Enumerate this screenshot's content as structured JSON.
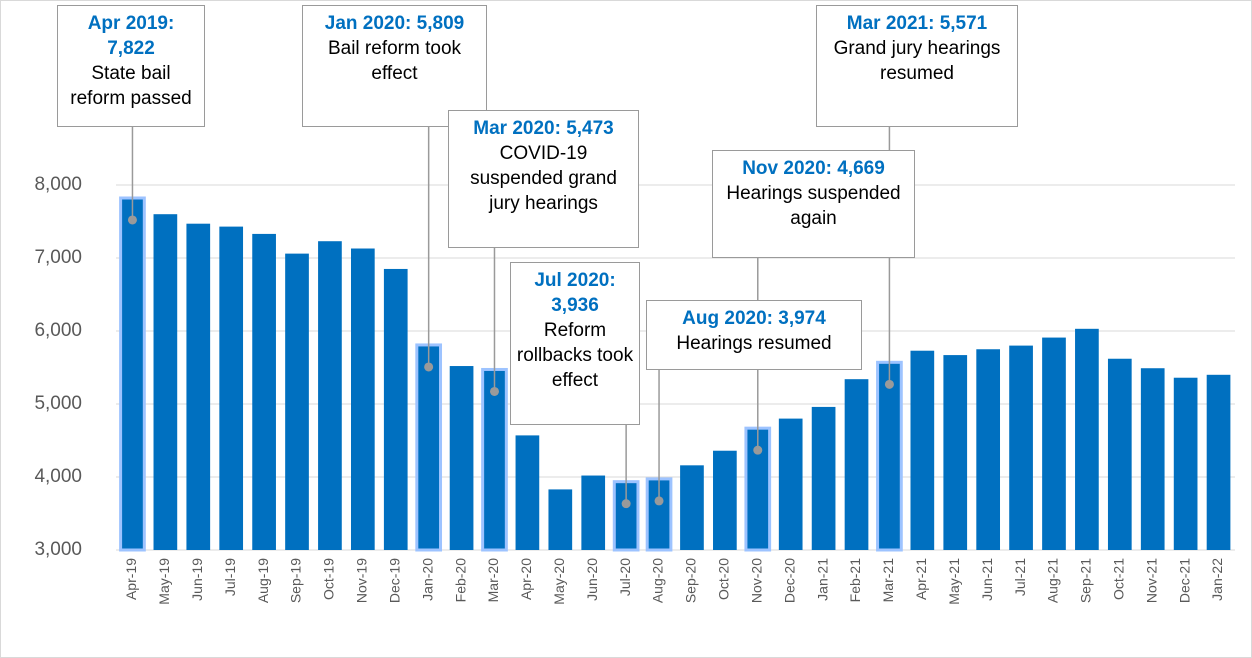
{
  "chart_data": {
    "type": "bar",
    "categories": [
      "Apr-19",
      "May-19",
      "Jun-19",
      "Jul-19",
      "Aug-19",
      "Sep-19",
      "Oct-19",
      "Nov-19",
      "Dec-19",
      "Jan-20",
      "Feb-20",
      "Mar-20",
      "Apr-20",
      "May-20",
      "Jun-20",
      "Jul-20",
      "Aug-20",
      "Sep-20",
      "Oct-20",
      "Nov-20",
      "Dec-20",
      "Jan-21",
      "Feb-21",
      "Mar-21",
      "Apr-21",
      "May-21",
      "Jun-21",
      "Jul-21",
      "Aug-21",
      "Sep-21",
      "Oct-21",
      "Nov-21",
      "Dec-21",
      "Jan-22"
    ],
    "values": [
      7822,
      7600,
      7470,
      7430,
      7330,
      7060,
      7230,
      7130,
      6850,
      5809,
      5520,
      5473,
      4570,
      3830,
      4020,
      3936,
      3974,
      4160,
      4360,
      4669,
      4800,
      4960,
      5340,
      5571,
      5730,
      5670,
      5750,
      5800,
      5910,
      6030,
      5620,
      5490,
      5360,
      5400
    ],
    "value_labels": [
      "Apr 2019: 7,822",
      null,
      null,
      null,
      null,
      null,
      null,
      null,
      null,
      "Jan 2020: 5,809",
      null,
      "Mar 2020: 5,473",
      null,
      null,
      null,
      "Jul 2020: 3,936",
      "Aug 2020: 3,974",
      null,
      null,
      "Nov 2020: 4,669",
      null,
      null,
      null,
      "Mar 2021: 5,571",
      null,
      null,
      null,
      null,
      null,
      null,
      null,
      null,
      null,
      null
    ],
    "annotations": [
      {
        "category": "Apr-19",
        "text": "State bail reform passed"
      },
      {
        "category": "Jan-20",
        "text": "Bail reform took effect"
      },
      {
        "category": "Mar-20",
        "text": "COVID-19 suspended grand jury hearings"
      },
      {
        "category": "Jul-20",
        "text": "Reform rollbacks took effect"
      },
      {
        "category": "Aug-20",
        "text": "Hearings resumed"
      },
      {
        "category": "Nov-20",
        "text": "Hearings suspended again"
      },
      {
        "category": "Mar-21",
        "text": "Grand jury hearings resumed"
      }
    ],
    "color": "#0070c0",
    "ylim": [
      3000,
      8000
    ],
    "yticks": [
      {
        "value": 3000,
        "label": "3,000"
      },
      {
        "value": 4000,
        "label": "4,000"
      },
      {
        "value": 5000,
        "label": "5,000"
      },
      {
        "value": 6000,
        "label": "6,000"
      },
      {
        "value": 7000,
        "label": "7,000"
      },
      {
        "value": 8000,
        "label": "8,000"
      }
    ],
    "grid": true
  }
}
